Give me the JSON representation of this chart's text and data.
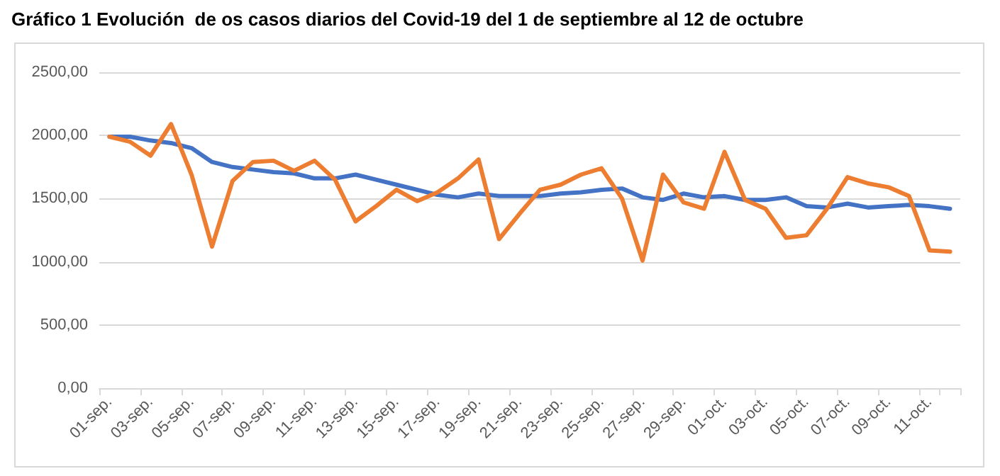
{
  "chart_data": {
    "type": "line",
    "title": "Gráfico 1 Evolución  de os casos diarios del Covid-19 del 1 de septiembre al 12 de octubre",
    "categories": [
      "01-sep.",
      null,
      "03-sep.",
      null,
      "05-sep.",
      null,
      "07-sep.",
      null,
      "09-sep.",
      null,
      "11-sep.",
      null,
      "13-sep.",
      null,
      "15-sep.",
      null,
      "17-sep.",
      null,
      "19-sep.",
      null,
      "21-sep.",
      null,
      "23-sep.",
      null,
      "25-sep.",
      null,
      "27-sep.",
      null,
      "29-sep.",
      null,
      "01-oct.",
      null,
      "03-oct.",
      null,
      "05-oct.",
      null,
      "07-oct.",
      null,
      "09-oct.",
      null,
      "11-oct.",
      null
    ],
    "series": [
      {
        "color": "#4472c4",
        "values": [
          1990,
          1990,
          1960,
          1940,
          1900,
          1790,
          1750,
          1730,
          1710,
          1700,
          1660,
          1660,
          1690,
          1650,
          1610,
          1570,
          1530,
          1510,
          1540,
          1520,
          1520,
          1520,
          1540,
          1550,
          1570,
          1580,
          1510,
          1490,
          1540,
          1510,
          1520,
          1490,
          1490,
          1510,
          1440,
          1430,
          1460,
          1430,
          1440,
          1450,
          1440,
          1420
        ]
      },
      {
        "color": "#ed7d31",
        "values": [
          1990,
          1950,
          1840,
          2090,
          1690,
          1120,
          1640,
          1790,
          1800,
          1720,
          1800,
          1650,
          1320,
          1440,
          1570,
          1480,
          1550,
          1660,
          1810,
          1180,
          1380,
          1570,
          1610,
          1690,
          1740,
          1500,
          1010,
          1690,
          1470,
          1420,
          1870,
          1490,
          1420,
          1190,
          1210,
          1420,
          1670,
          1620,
          1590,
          1520,
          1090,
          1080
        ]
      }
    ],
    "ylim": [
      0,
      2500
    ],
    "yticks": [
      {
        "value": 0,
        "label": "0,00"
      },
      {
        "value": 500,
        "label": "500,00"
      },
      {
        "value": 1000,
        "label": "1000,00"
      },
      {
        "value": 1500,
        "label": "1500,00"
      },
      {
        "value": 2000,
        "label": "2000,00"
      },
      {
        "value": 2500,
        "label": "2500,00"
      }
    ],
    "grid": "y",
    "marker": "none",
    "line_style": "solid"
  }
}
